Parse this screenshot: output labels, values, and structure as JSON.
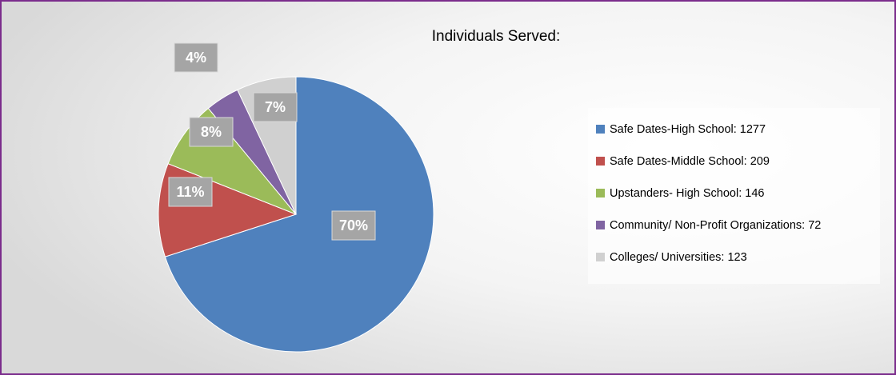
{
  "chart_data": {
    "type": "pie",
    "title": "Individuals Served:",
    "categories": [
      "Safe Dates-High School: 1277",
      "Safe Dates-Middle School: 209",
      "Upstanders- High School: 146",
      "Community/ Non-Profit Organizations: 72",
      "Colleges/ Universities: 123"
    ],
    "values": [
      70,
      11,
      8,
      4,
      7
    ],
    "value_labels": [
      "70%",
      "11%",
      "8%",
      "4%",
      "7%"
    ],
    "colors": [
      "#4f81bd",
      "#c0504d",
      "#9bbb59",
      "#8064a2",
      "#d0d0d0"
    ],
    "legend": "right"
  }
}
